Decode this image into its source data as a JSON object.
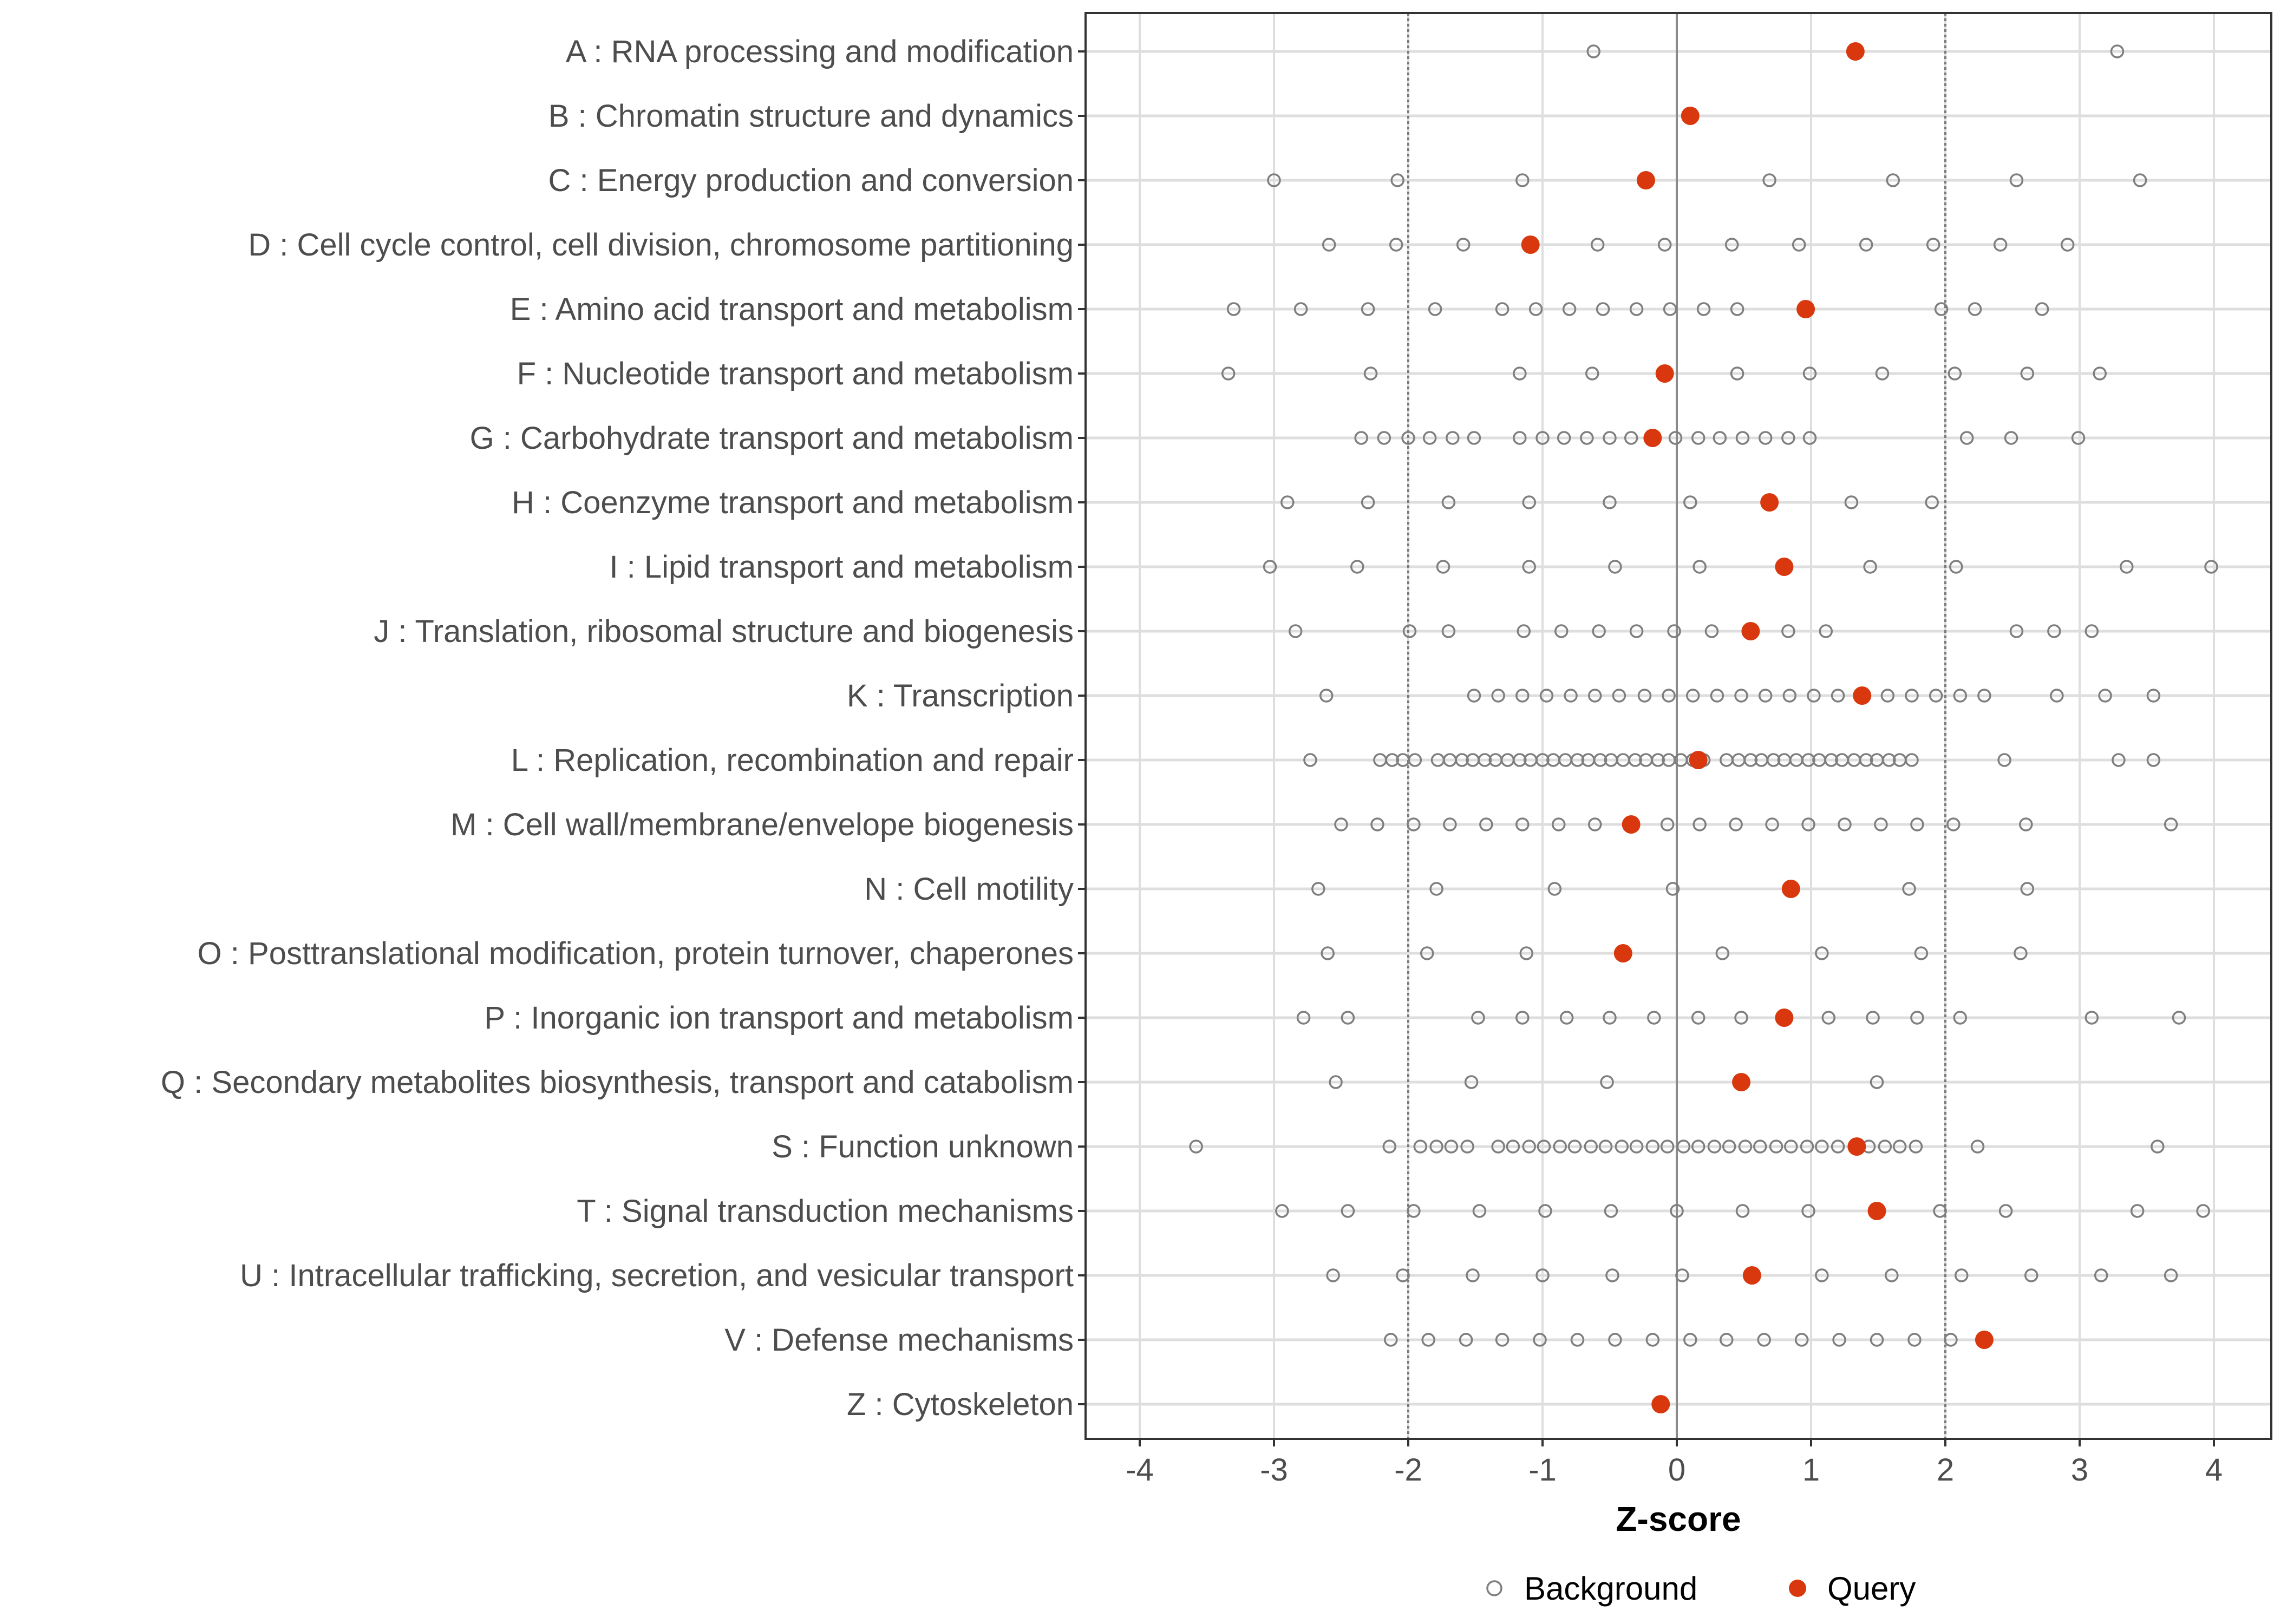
{
  "chart_data": {
    "type": "scatter",
    "title": "",
    "xlabel": "Z-score",
    "ylabel": "",
    "xlim": [
      -4.4,
      4.4
    ],
    "x_ticks": [
      "-4",
      "-3",
      "-2",
      "-1",
      "0",
      "1",
      "2",
      "3",
      "4"
    ],
    "x_tick_values": [
      -4,
      -3,
      -2,
      -1,
      0,
      1,
      2,
      3,
      4
    ],
    "reference_lines": {
      "dotted": [
        -2,
        2
      ],
      "solid": [
        0
      ]
    },
    "grid": true,
    "legend": {
      "position": "bottom",
      "entries": [
        {
          "label": "Background",
          "marker": "open-circle",
          "color": "#7f7f7f"
        },
        {
          "label": "Query",
          "marker": "filled-circle",
          "color": "#d9380e"
        }
      ]
    },
    "categories": [
      {
        "label": "A : RNA processing and modification",
        "background": [
          -0.62,
          3.28
        ],
        "query": 1.33
      },
      {
        "label": "B : Chromatin structure and dynamics",
        "background": [],
        "query": 0.1
      },
      {
        "label": "C : Energy production and conversion",
        "background": [
          -3.0,
          -2.08,
          -1.15,
          0.69,
          1.61,
          2.53,
          3.45
        ],
        "query": -0.23
      },
      {
        "label": "D : Cell cycle control, cell division, chromosome partitioning",
        "background": [
          -2.59,
          -2.09,
          -1.59,
          -0.59,
          -0.09,
          0.41,
          0.91,
          1.41,
          1.91,
          2.41,
          2.91
        ],
        "query": -1.09
      },
      {
        "label": "E : Amino acid transport and metabolism",
        "background": [
          -3.3,
          -2.8,
          -2.3,
          -1.8,
          -1.3,
          -1.05,
          -0.8,
          -0.55,
          -0.3,
          -0.05,
          0.2,
          0.45,
          1.97,
          2.22,
          2.72
        ],
        "query": 0.96
      },
      {
        "label": "F : Nucleotide transport and metabolism",
        "background": [
          -3.34,
          -2.28,
          -1.17,
          -0.63,
          0.45,
          0.99,
          1.53,
          2.07,
          2.61,
          3.15
        ],
        "query": -0.09
      },
      {
        "label": "G : Carbohydrate transport and metabolism",
        "background": [
          -2.35,
          -2.18,
          -2.0,
          -1.84,
          -1.67,
          -1.51,
          -1.17,
          -1.0,
          -0.84,
          -0.67,
          -0.5,
          -0.34,
          -0.01,
          0.16,
          0.32,
          0.49,
          0.66,
          0.83,
          0.99,
          2.16,
          2.49,
          2.99
        ],
        "query": -0.18
      },
      {
        "label": "H : Coenzyme transport and metabolism",
        "background": [
          -2.9,
          -2.3,
          -1.7,
          -1.1,
          -0.5,
          0.1,
          1.3,
          1.9
        ],
        "query": 0.69
      },
      {
        "label": "I : Lipid transport and metabolism",
        "background": [
          -3.03,
          -2.38,
          -1.74,
          -1.1,
          -0.46,
          0.17,
          1.44,
          2.08,
          3.35,
          3.98
        ],
        "query": 0.8
      },
      {
        "label": "J : Translation, ribosomal structure and biogenesis",
        "background": [
          -2.84,
          -1.99,
          -1.7,
          -1.14,
          -0.86,
          -0.58,
          -0.3,
          -0.02,
          0.26,
          0.83,
          1.11,
          2.53,
          2.81,
          3.09
        ],
        "query": 0.55
      },
      {
        "label": "K : Transcription",
        "background": [
          -2.61,
          -1.51,
          -1.33,
          -1.15,
          -0.97,
          -0.79,
          -0.61,
          -0.43,
          -0.24,
          -0.06,
          0.12,
          0.3,
          0.48,
          0.66,
          0.84,
          1.02,
          1.2,
          1.57,
          1.75,
          1.93,
          2.11,
          2.29,
          2.83,
          3.19,
          3.55
        ],
        "query": 1.38
      },
      {
        "label": "L : Replication, recombination and repair",
        "background": [
          -2.73,
          -2.21,
          -2.12,
          -2.04,
          -1.95,
          -1.78,
          -1.69,
          -1.6,
          -1.52,
          -1.43,
          -1.35,
          -1.26,
          -1.17,
          -1.09,
          -1.0,
          -0.92,
          -0.83,
          -0.74,
          -0.66,
          -0.57,
          -0.49,
          -0.4,
          -0.31,
          -0.23,
          -0.14,
          -0.06,
          0.03,
          0.12,
          0.2,
          0.37,
          0.46,
          0.55,
          0.63,
          0.72,
          0.8,
          0.89,
          0.98,
          1.06,
          1.15,
          1.23,
          1.32,
          1.41,
          1.49,
          1.58,
          1.66,
          1.75,
          2.44,
          3.29,
          3.55
        ],
        "query": 0.16
      },
      {
        "label": "M : Cell wall/membrane/envelope biogenesis",
        "background": [
          -2.5,
          -2.23,
          -1.96,
          -1.69,
          -1.42,
          -1.15,
          -0.88,
          -0.61,
          -0.07,
          0.17,
          0.44,
          0.71,
          0.98,
          1.25,
          1.52,
          1.79,
          2.06,
          2.6,
          3.68
        ],
        "query": -0.34
      },
      {
        "label": "N : Cell motility",
        "background": [
          -2.67,
          -1.79,
          -0.91,
          -0.03,
          1.73,
          2.61
        ],
        "query": 0.85
      },
      {
        "label": "O : Posttranslational modification, protein turnover, chaperones",
        "background": [
          -2.6,
          -1.86,
          -1.12,
          0.34,
          1.08,
          1.82,
          2.56
        ],
        "query": -0.4
      },
      {
        "label": "P : Inorganic ion transport and metabolism",
        "background": [
          -2.78,
          -2.45,
          -1.48,
          -1.15,
          -0.82,
          -0.5,
          -0.17,
          0.16,
          0.48,
          1.13,
          1.46,
          1.79,
          2.11,
          3.09,
          3.74
        ],
        "query": 0.8
      },
      {
        "label": "Q : Secondary metabolites biosynthesis, transport and catabolism",
        "background": [
          -2.54,
          -1.53,
          -0.52,
          1.49
        ],
        "query": 0.48
      },
      {
        "label": "S : Function unknown",
        "background": [
          -3.58,
          -2.14,
          -1.91,
          -1.79,
          -1.68,
          -1.56,
          -1.33,
          -1.22,
          -1.1,
          -0.99,
          -0.87,
          -0.76,
          -0.64,
          -0.53,
          -0.41,
          -0.3,
          -0.18,
          -0.07,
          0.05,
          0.16,
          0.28,
          0.39,
          0.51,
          0.62,
          0.74,
          0.85,
          0.97,
          1.08,
          1.2,
          1.43,
          1.55,
          1.66,
          1.78,
          2.24,
          3.58
        ],
        "query": 1.34
      },
      {
        "label": "T : Signal transduction mechanisms",
        "background": [
          -2.94,
          -2.45,
          -1.96,
          -1.47,
          -0.98,
          -0.49,
          0.0,
          0.49,
          0.98,
          1.96,
          2.45,
          3.43,
          3.92
        ],
        "query": 1.49
      },
      {
        "label": "U : Intracellular trafficking, secretion, and vesicular transport",
        "background": [
          -2.56,
          -2.04,
          -1.52,
          -1.0,
          -0.48,
          0.04,
          1.08,
          1.6,
          2.12,
          2.64,
          3.16,
          3.68
        ],
        "query": 0.56
      },
      {
        "label": "V : Defense mechanisms",
        "background": [
          -2.13,
          -1.85,
          -1.57,
          -1.3,
          -1.02,
          -0.74,
          -0.46,
          -0.18,
          0.1,
          0.37,
          0.65,
          0.93,
          1.21,
          1.49,
          1.77,
          2.04
        ],
        "query": 2.29
      },
      {
        "label": "Z : Cytoskeleton",
        "background": [],
        "query": -0.12
      }
    ]
  }
}
